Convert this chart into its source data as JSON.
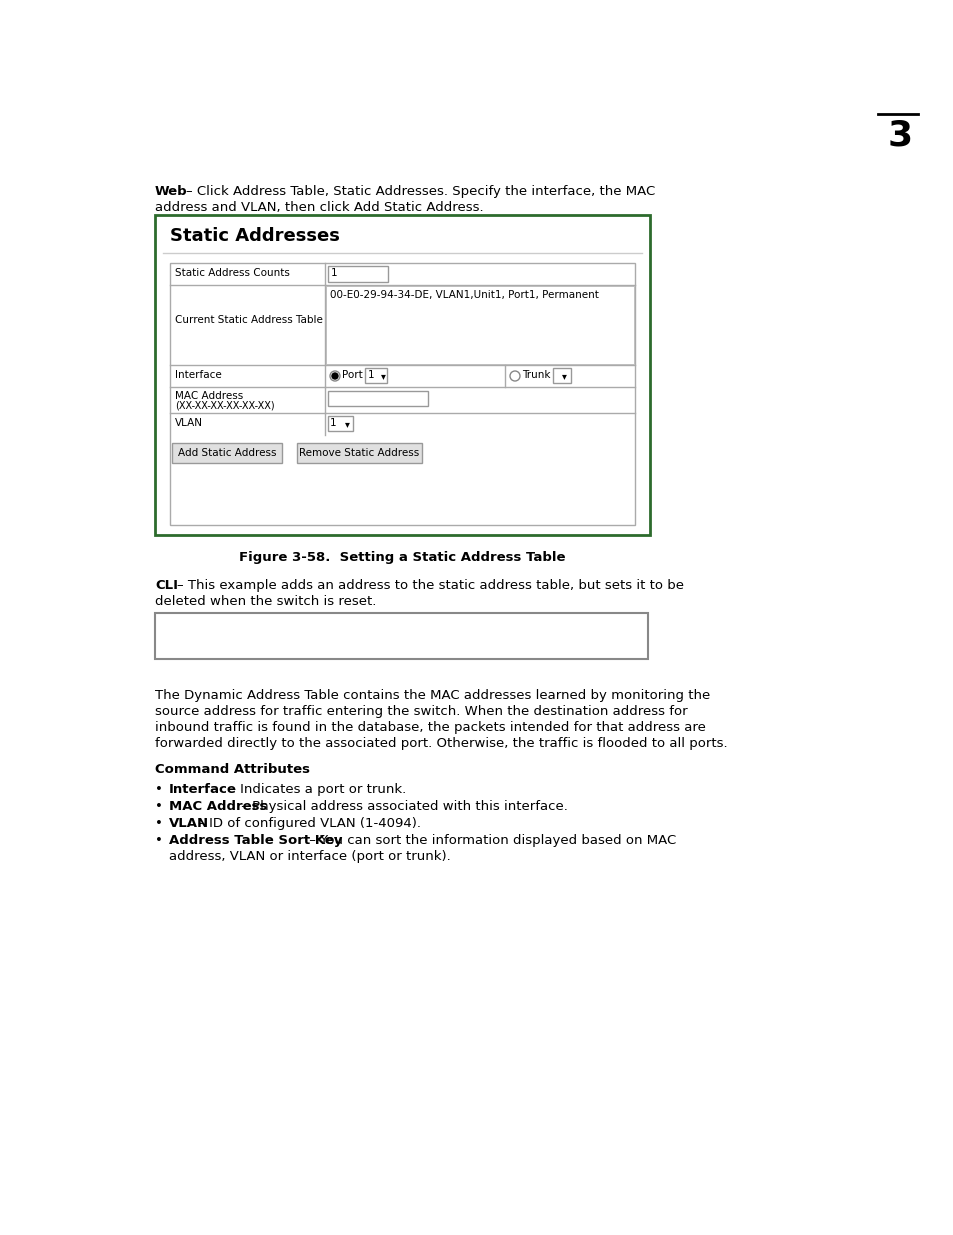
{
  "page_number": "3",
  "bg_color": "#ffffff",
  "text_color": "#000000",
  "web_paragraph": "Web – Click Address Table, Static Addresses. Specify the interface, the MAC\naddress and VLAN, then click Add Static Address.",
  "figure_box_border_color": "#2d6b2d",
  "figure_title": "Static Addresses",
  "figure_caption": "Figure 3-58.  Setting a Static Address Table",
  "cli_paragraph": "CLI – This example adds an address to the static address table, but sets it to be\ndeleted when the switch is reset.",
  "body_paragraph": "The Dynamic Address Table contains the MAC addresses learned by monitoring the\nsource address for traffic entering the switch. When the destination address for\ninbound traffic is found in the database, the packets intended for that address are\nforwarded directly to the associated port. Otherwise, the traffic is flooded to all ports.",
  "command_attributes_title": "Command Attributes",
  "bullet_items": [
    {
      "bold": "Interface",
      "normal": " – Indicates a port or trunk."
    },
    {
      "bold": "MAC Address",
      "normal": " – Physical address associated with this interface."
    },
    {
      "bold": "VLAN",
      "normal": " – ID of configured VLAN (1-4094)."
    },
    {
      "bold": "Address Table Sort Key",
      "normal": " – You can sort the information displayed based on MAC"
    }
  ],
  "bullet_last_cont": "      address, VLAN or interface (port or trunk).",
  "buttons": [
    "Add Static Address",
    "Remove Static Address"
  ]
}
